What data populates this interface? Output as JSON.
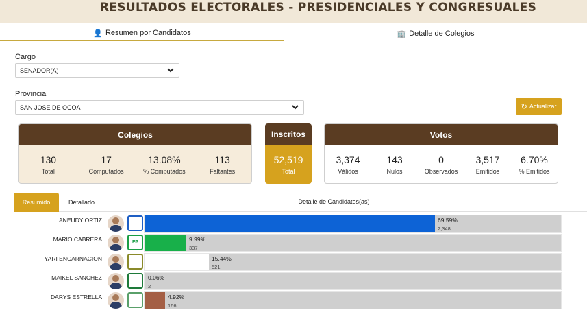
{
  "header": {
    "title": "RESULTADOS ELECTORALES - PRESIDENCIALES Y CONGRESUALES"
  },
  "tabs": [
    {
      "label": "Resumen por Candidatos",
      "icon": "user-icon"
    },
    {
      "label": "Detalle de Colegios",
      "icon": "building-icon"
    }
  ],
  "filters": {
    "cargo_label": "Cargo",
    "cargo_value": "SENADOR(A)",
    "provincia_label": "Provincia",
    "provincia_value": "SAN JOSE DE OCOA",
    "refresh_label": "Actualizar"
  },
  "colegios": {
    "title": "Colegios",
    "stats": [
      {
        "value": "130",
        "label": "Total"
      },
      {
        "value": "17",
        "label": "Computados"
      },
      {
        "value": "13.08%",
        "label": "% Computados"
      },
      {
        "value": "113",
        "label": "Faltantes"
      }
    ]
  },
  "inscritos": {
    "title": "Inscritos",
    "value": "52,519",
    "label": "Total"
  },
  "votos": {
    "title": "Votos",
    "stats": [
      {
        "value": "3,374",
        "label": "Válidos"
      },
      {
        "value": "143",
        "label": "Nulos"
      },
      {
        "value": "0",
        "label": "Observados"
      },
      {
        "value": "3,517",
        "label": "Emitidos"
      },
      {
        "value": "6.70%",
        "label": "% Emitidos"
      }
    ]
  },
  "subtabs": {
    "active": "Resumido",
    "other": "Detallado",
    "detail_title": "Detalle de Candidatos(as)"
  },
  "candidates": [
    {
      "name": "ANEUDY ORTIZ",
      "party_color": "#1f5fc4",
      "party_text": "",
      "pct": "69.59%",
      "share": 0.6959,
      "votes": "2,348",
      "bar_color": "#0d63d6"
    },
    {
      "name": "MARIO CABRERA",
      "party_color": "#1a9e45",
      "party_text": "FP",
      "pct": "9.99%",
      "share": 0.0999,
      "votes": "337",
      "bar_color": "#18b04a"
    },
    {
      "name": "YARI ENCARNACION",
      "party_color": "#8a8a2a",
      "party_text": "",
      "pct": "15.44%",
      "share": 0.1544,
      "votes": "521",
      "bar_color": "#ffffff"
    },
    {
      "name": "MAIKEL SANCHEZ",
      "party_color": "#1e7a3a",
      "party_text": "",
      "pct": "0.06%",
      "share": 0.0006,
      "votes": "2",
      "bar_color": "#1e7a3a"
    },
    {
      "name": "DARYS ESTRELLA",
      "party_color": "#5aa06a",
      "party_text": "",
      "pct": "4.92%",
      "share": 0.0492,
      "votes": "166",
      "bar_color": "#a45f45"
    }
  ]
}
